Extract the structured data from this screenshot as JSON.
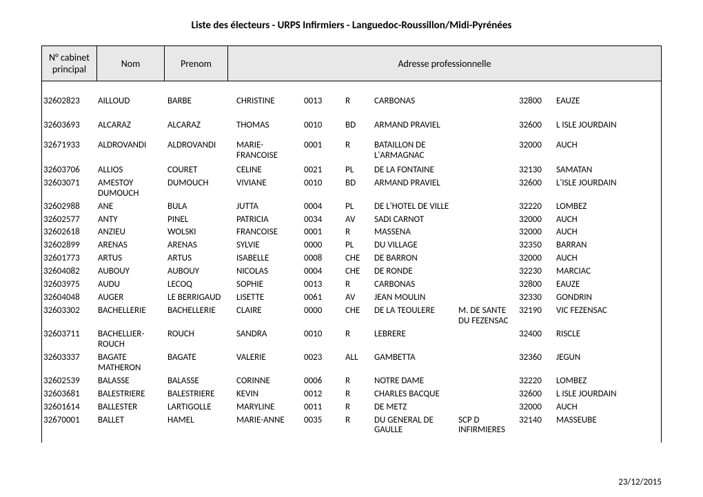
{
  "title": "Liste des électeurs - URPS Infirmiers - Languedoc-Roussillon/Midi-Pyrénées",
  "footer_date": "23/12/2015",
  "headers": {
    "cabinet": "N° cabinet principal",
    "nom": "Nom",
    "prenom": "Prenom",
    "adresse": "Adresse professionnelle"
  },
  "rows": [
    {
      "space": "tall",
      "c0": "32602823",
      "c1": "AILLOUD",
      "c2": "BARBE",
      "c3": "CHRISTINE",
      "c4": "0013",
      "c5": "R",
      "c6": "CARBONAS",
      "c7": "",
      "c8": "32800",
      "c9": "EAUZE"
    },
    {
      "space": "tall",
      "c0": "32603693",
      "c1": "ALCARAZ",
      "c2": "ALCARAZ",
      "c3": "THOMAS",
      "c4": "0010",
      "c5": "BD",
      "c6": "ARMAND PRAVIEL",
      "c7": "",
      "c8": "32600",
      "c9": "L ISLE JOURDAIN"
    },
    {
      "space": "med",
      "c0": "32671933",
      "c1": "ALDROVANDI",
      "c2": "ALDROVANDI",
      "c3": "MARIE-FRANCOISE",
      "c4": "0001",
      "c5": "R",
      "c6": "BATAILLON DE L'ARMAGNAC",
      "c7": "",
      "c8": "32000",
      "c9": "AUCH"
    },
    {
      "space": "",
      "c0": "32603706",
      "c1": "ALLIOS",
      "c2": "COURET",
      "c3": "CELINE",
      "c4": "0021",
      "c5": "PL",
      "c6": "DE LA FONTAINE",
      "c7": "",
      "c8": "32130",
      "c9": "SAMATAN"
    },
    {
      "space": "",
      "c0": "32603071",
      "c1": "AMESTOY DUMOUCH",
      "c2": "DUMOUCH",
      "c3": "VIVIANE",
      "c4": "0010",
      "c5": "BD",
      "c6": "ARMAND PRAVIEL",
      "c7": "",
      "c8": "32600",
      "c9": "L'ISLE JOURDAIN"
    },
    {
      "space": "",
      "c0": "32602988",
      "c1": "ANE",
      "c2": "BULA",
      "c3": "JUTTA",
      "c4": "0004",
      "c5": "PL",
      "c6": "DE L'HOTEL DE VILLE",
      "c7": "",
      "c8": "32220",
      "c9": "LOMBEZ"
    },
    {
      "space": "",
      "c0": "32602577",
      "c1": "ANTY",
      "c2": "PINEL",
      "c3": "PATRICIA",
      "c4": "0034",
      "c5": "AV",
      "c6": "SADI CARNOT",
      "c7": "",
      "c8": "32000",
      "c9": "AUCH"
    },
    {
      "space": "",
      "c0": "32602618",
      "c1": "ANZIEU",
      "c2": "WOLSKI",
      "c3": "FRANCOISE",
      "c4": "0001",
      "c5": "R",
      "c6": "MASSENA",
      "c7": "",
      "c8": "32000",
      "c9": "AUCH"
    },
    {
      "space": "",
      "c0": "32602899",
      "c1": "ARENAS",
      "c2": "ARENAS",
      "c3": "SYLVIE",
      "c4": "0000",
      "c5": "PL",
      "c6": "DU VILLAGE",
      "c7": "",
      "c8": "32350",
      "c9": "BARRAN"
    },
    {
      "space": "",
      "c0": "32601773",
      "c1": "ARTUS",
      "c2": "ARTUS",
      "c3": "ISABELLE",
      "c4": "0008",
      "c5": "CHE",
      "c6": "DE BARRON",
      "c7": "",
      "c8": "32000",
      "c9": "AUCH"
    },
    {
      "space": "",
      "c0": "32604082",
      "c1": "AUBOUY",
      "c2": "AUBOUY",
      "c3": "NICOLAS",
      "c4": "0004",
      "c5": "CHE",
      "c6": "DE RONDE",
      "c7": "",
      "c8": "32230",
      "c9": "MARCIAC"
    },
    {
      "space": "",
      "c0": "32603975",
      "c1": "AUDU",
      "c2": "LECOQ",
      "c3": "SOPHIE",
      "c4": "0013",
      "c5": "R",
      "c6": "CARBONAS",
      "c7": "",
      "c8": "32800",
      "c9": "EAUZE"
    },
    {
      "space": "",
      "c0": "32604048",
      "c1": "AUGER",
      "c2": "LE BERRIGAUD",
      "c3": "LISETTE",
      "c4": "0061",
      "c5": "AV",
      "c6": "JEAN MOULIN",
      "c7": "",
      "c8": "32330",
      "c9": "GONDRIN"
    },
    {
      "space": "",
      "c0": "32603302",
      "c1": "BACHELLERIE",
      "c2": "BACHELLERIE",
      "c3": "CLAIRE",
      "c4": "0000",
      "c5": "CHE",
      "c6": "DE LA TEOULERE",
      "c7": "M. DE SANTE DU FEZENSAC",
      "c8": "32190",
      "c9": "VIC FEZENSAC"
    },
    {
      "space": "",
      "c0": "32603711",
      "c1": "BACHELLIER-ROUCH",
      "c2": "ROUCH",
      "c3": "SANDRA",
      "c4": "0010",
      "c5": "R",
      "c6": "LEBRERE",
      "c7": "",
      "c8": "32400",
      "c9": "RISCLE"
    },
    {
      "space": "",
      "c0": "32603337",
      "c1": "BAGATE MATHERON",
      "c2": "BAGATE",
      "c3": "VALERIE",
      "c4": "0023",
      "c5": "ALL",
      "c6": "GAMBETTA",
      "c7": "",
      "c8": "32360",
      "c9": "JEGUN"
    },
    {
      "space": "",
      "c0": "32602539",
      "c1": "BALASSE",
      "c2": "BALASSE",
      "c3": "CORINNE",
      "c4": "0006",
      "c5": "R",
      "c6": "NOTRE DAME",
      "c7": "",
      "c8": "32220",
      "c9": "LOMBEZ"
    },
    {
      "space": "",
      "c0": "32603681",
      "c1": "BALESTRIERE",
      "c2": "BALESTRIERE",
      "c3": "KEVIN",
      "c4": "0012",
      "c5": "R",
      "c6": "CHARLES BACQUE",
      "c7": "",
      "c8": "32600",
      "c9": "L ISLE JOURDAIN"
    },
    {
      "space": "",
      "c0": "32601614",
      "c1": "BALLESTER",
      "c2": "LARTIGOLLE",
      "c3": "MARYLINE",
      "c4": "0011",
      "c5": "R",
      "c6": "DE METZ",
      "c7": "",
      "c8": "32000",
      "c9": "AUCH"
    },
    {
      "space": "",
      "c0": "32670001",
      "c1": "BALLET",
      "c2": "HAMEL",
      "c3": "MARIE-ANNE",
      "c4": "0035",
      "c5": "R",
      "c6": "DU GENERAL DE GAULLE",
      "c7": "SCP D INFIRMIERES",
      "c8": "32140",
      "c9": "MASSEUBE"
    }
  ]
}
